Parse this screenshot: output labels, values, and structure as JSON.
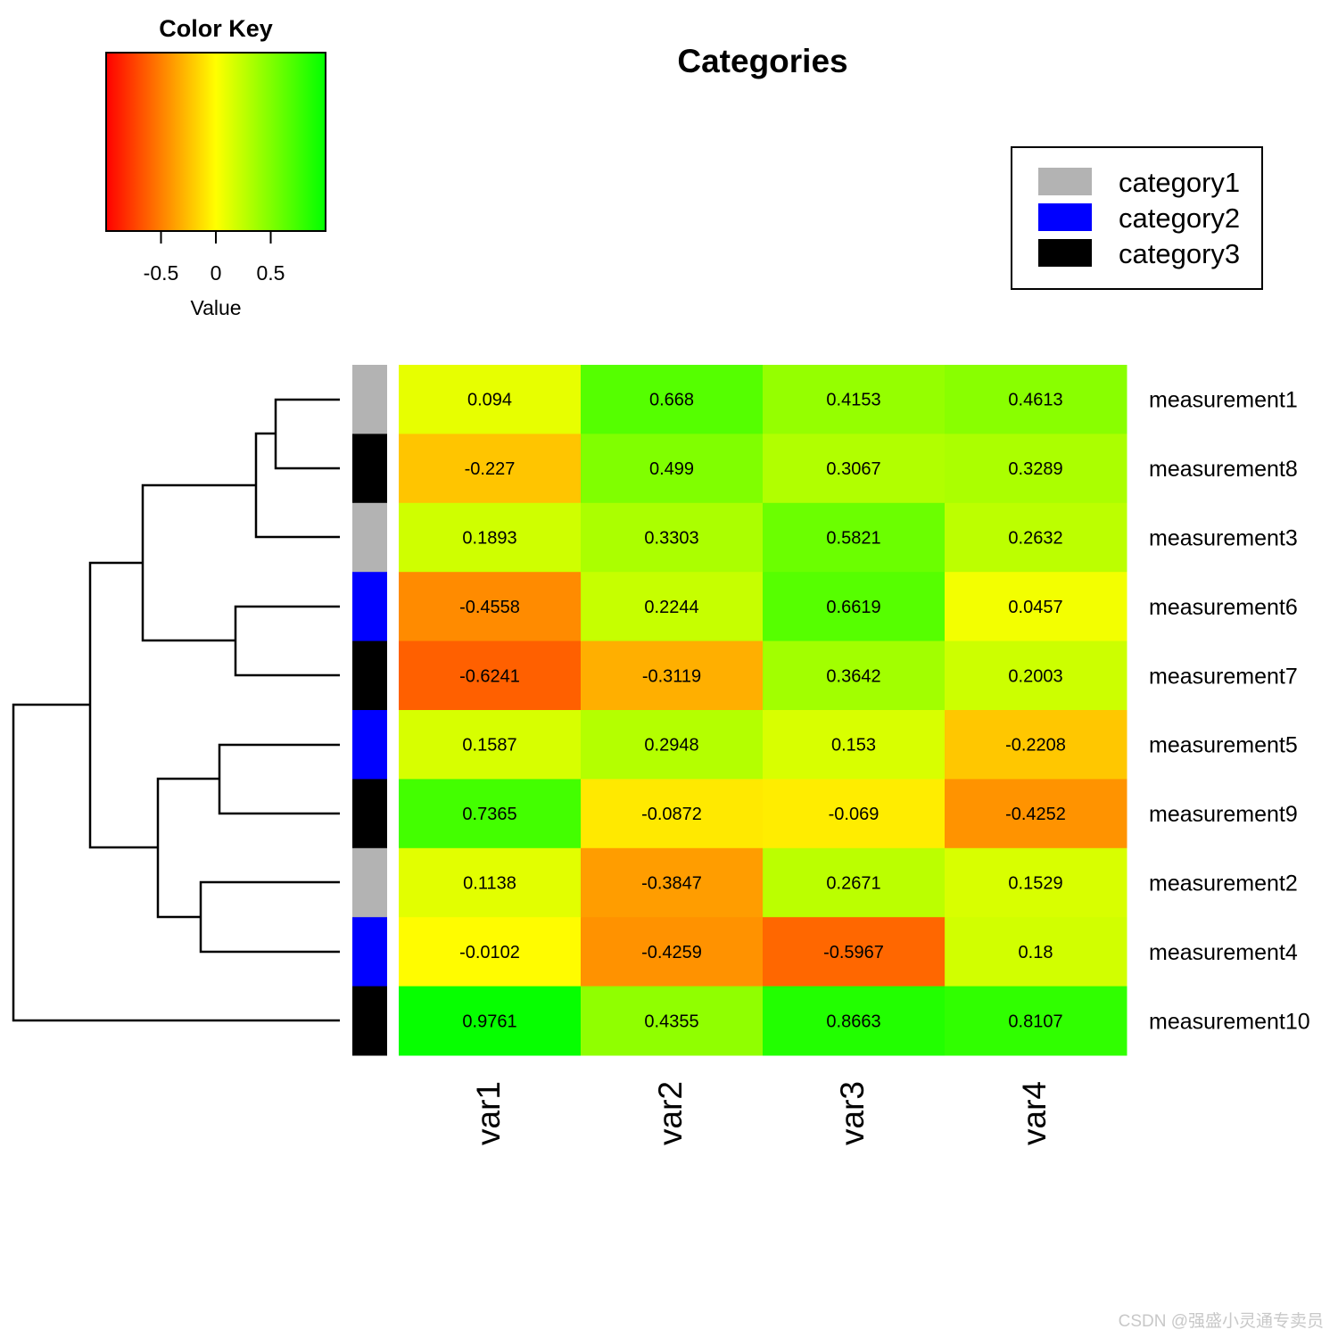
{
  "chart_data": {
    "type": "heatmap",
    "title": "Categories",
    "xlabel": "",
    "ylabel": "",
    "columns": [
      "var1",
      "var2",
      "var3",
      "var4"
    ],
    "rows": [
      {
        "label": "measurement1",
        "category": "category1",
        "values": [
          0.094,
          0.668,
          0.4153,
          0.4613
        ]
      },
      {
        "label": "measurement8",
        "category": "category3",
        "values": [
          -0.227,
          0.499,
          0.3067,
          0.3289
        ]
      },
      {
        "label": "measurement3",
        "category": "category1",
        "values": [
          0.1893,
          0.3303,
          0.5821,
          0.2632
        ]
      },
      {
        "label": "measurement6",
        "category": "category2",
        "values": [
          -0.4558,
          0.2244,
          0.6619,
          0.0457
        ]
      },
      {
        "label": "measurement7",
        "category": "category3",
        "values": [
          -0.6241,
          -0.3119,
          0.3642,
          0.2003
        ]
      },
      {
        "label": "measurement5",
        "category": "category2",
        "values": [
          0.1587,
          0.2948,
          0.153,
          -0.2208
        ]
      },
      {
        "label": "measurement9",
        "category": "category3",
        "values": [
          0.7365,
          -0.0872,
          -0.069,
          -0.4252
        ]
      },
      {
        "label": "measurement2",
        "category": "category1",
        "values": [
          0.1138,
          -0.3847,
          0.2671,
          0.1529
        ]
      },
      {
        "label": "measurement4",
        "category": "category2",
        "values": [
          -0.0102,
          -0.4259,
          -0.5967,
          0.18
        ]
      },
      {
        "label": "measurement10",
        "category": "category3",
        "values": [
          0.9761,
          0.4355,
          0.8663,
          0.8107
        ]
      }
    ],
    "legend": {
      "position": "top-right",
      "entries": [
        {
          "name": "category1",
          "color": "#b3b3b3"
        },
        {
          "name": "category2",
          "color": "#0000ff"
        },
        {
          "name": "category3",
          "color": "#000000"
        }
      ]
    },
    "color_key": {
      "title": "Color Key",
      "xlabel": "Value",
      "range": [
        -1,
        1
      ],
      "ticks": [
        -0.5,
        0,
        0.5
      ],
      "tick_labels": [
        "-0.5",
        "0",
        "0.5"
      ],
      "colors": [
        "#ff0000",
        "#ffff00",
        "#00ff00"
      ]
    },
    "grid": false
  },
  "watermark": "CSDN @强盛小灵通专卖员"
}
